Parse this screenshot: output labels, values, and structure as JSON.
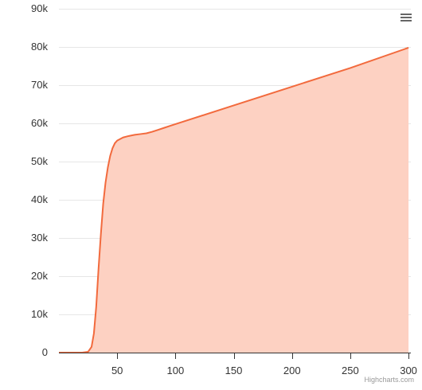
{
  "chart_data": {
    "type": "area",
    "title": "",
    "xlabel": "",
    "ylabel": "",
    "xlim": [
      0,
      302
    ],
    "ylim": [
      0,
      90000
    ],
    "x_ticks": [
      50,
      100,
      150,
      200,
      250,
      300
    ],
    "y_ticks": [
      0,
      10000,
      20000,
      30000,
      40000,
      50000,
      60000,
      70000,
      80000,
      90000
    ],
    "y_tick_labels": [
      "0",
      "10k",
      "20k",
      "30k",
      "40k",
      "50k",
      "60k",
      "70k",
      "80k",
      "90k"
    ],
    "grid": "horizontal",
    "colors": {
      "line": "#f26a3d",
      "fill": "#fdd1c2"
    },
    "series": [
      {
        "values": [
          [
            0,
            0
          ],
          [
            10,
            0
          ],
          [
            20,
            0
          ],
          [
            25,
            200
          ],
          [
            28,
            1500
          ],
          [
            30,
            5000
          ],
          [
            32,
            12000
          ],
          [
            34,
            22000
          ],
          [
            36,
            31000
          ],
          [
            38,
            39000
          ],
          [
            40,
            44500
          ],
          [
            42,
            48500
          ],
          [
            44,
            51500
          ],
          [
            46,
            53500
          ],
          [
            48,
            54800
          ],
          [
            50,
            55500
          ],
          [
            55,
            56300
          ],
          [
            60,
            56700
          ],
          [
            65,
            57000
          ],
          [
            70,
            57200
          ],
          [
            75,
            57400
          ],
          [
            80,
            57800
          ],
          [
            85,
            58300
          ],
          [
            90,
            58800
          ],
          [
            95,
            59300
          ],
          [
            100,
            59800
          ],
          [
            150,
            64700
          ],
          [
            200,
            69600
          ],
          [
            250,
            74500
          ],
          [
            300,
            79800
          ]
        ]
      }
    ]
  },
  "menu": {
    "icon": "hamburger-menu-icon"
  },
  "credits": {
    "text": "Highcharts.com"
  }
}
